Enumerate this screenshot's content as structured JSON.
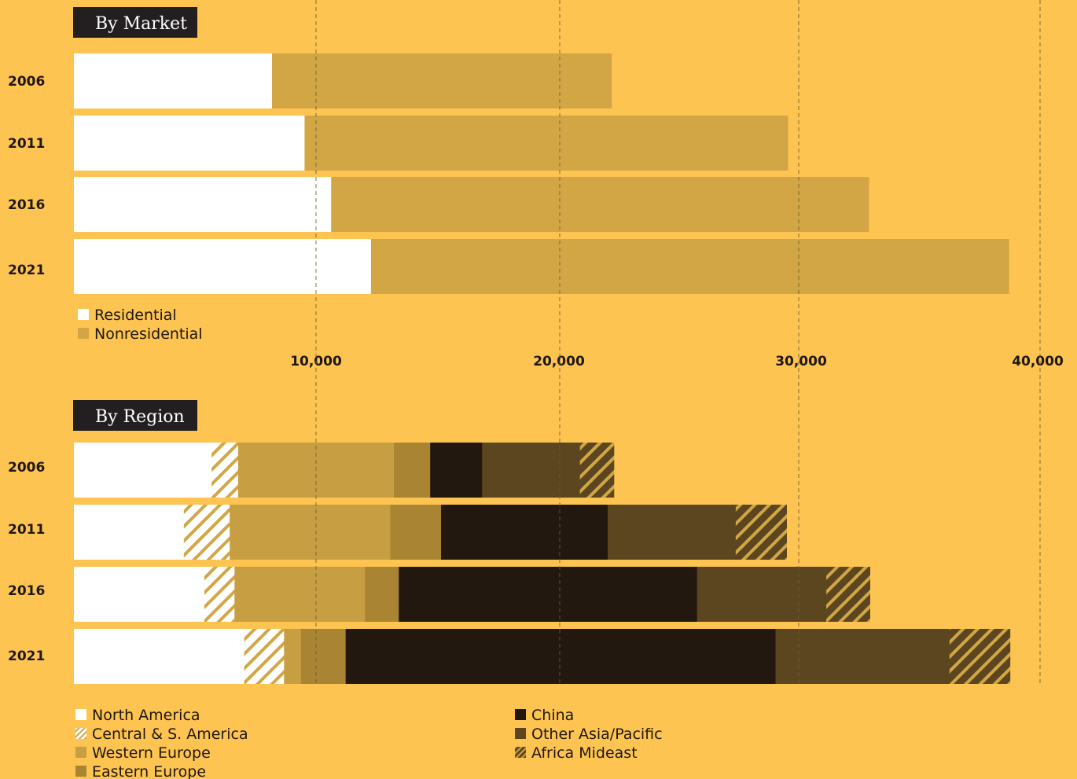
{
  "colors": {
    "background": "#FDC452",
    "header_bg": "#231F20",
    "residential": "#FFFFFF",
    "nonresidential": "#D2A645",
    "north_america": "#FFFFFF",
    "central_s_america": "hatch-white",
    "western_europe": "#C89E42",
    "eastern_europe": "#A88433",
    "china": "#221810",
    "other_asia_pacific": "#5C4620",
    "africa_mideast": "hatch-dark"
  },
  "chart_data": [
    {
      "type": "bar",
      "orientation": "horizontal",
      "stacked": true,
      "title": "By Market",
      "categories": [
        "2006",
        "2011",
        "2016",
        "2021"
      ],
      "series": [
        {
          "name": "Residential",
          "color_key": "residential",
          "values": [
            8200,
            9550,
            10650,
            12300
          ]
        },
        {
          "name": "Nonresidential",
          "color_key": "nonresidential",
          "values": [
            14050,
            20000,
            22250,
            26400
          ]
        }
      ],
      "xlim": [
        0,
        40000
      ],
      "x_ticks": [
        10000,
        20000,
        30000,
        40000
      ],
      "x_tick_labels": [
        "10,000",
        "20,000",
        "30,000",
        "40,000"
      ],
      "grid": "vertical-dashed",
      "legend_position": "bottom-left"
    },
    {
      "type": "bar",
      "orientation": "horizontal",
      "stacked": true,
      "title": "By Region",
      "categories": [
        "2006",
        "2011",
        "2016",
        "2021"
      ],
      "series": [
        {
          "name": "North America",
          "color_key": "north_america",
          "values": [
            5700,
            4550,
            5400,
            7050
          ]
        },
        {
          "name": "Central & S. America",
          "color_key": "central_s_america",
          "values": [
            1100,
            1900,
            1250,
            1650
          ]
        },
        {
          "name": "Western Europe",
          "color_key": "western_europe",
          "values": [
            6450,
            6650,
            5400,
            700
          ]
        },
        {
          "name": "Eastern Europe",
          "color_key": "eastern_europe",
          "values": [
            1500,
            2100,
            1400,
            1850
          ]
        },
        {
          "name": "China",
          "color_key": "china",
          "values": [
            2150,
            6900,
            12350,
            17800
          ]
        },
        {
          "name": "Other Asia/Pacific",
          "color_key": "other_asia_pacific",
          "values": [
            4050,
            5300,
            5350,
            7200
          ]
        },
        {
          "name": "Africa Mideast",
          "color_key": "africa_mideast",
          "values": [
            1400,
            2100,
            1800,
            2500
          ]
        }
      ],
      "xlim": [
        0,
        40000
      ],
      "x_ticks": [
        10000,
        20000,
        30000,
        40000
      ],
      "grid": "vertical-dashed",
      "legend_position": "bottom-left"
    }
  ]
}
